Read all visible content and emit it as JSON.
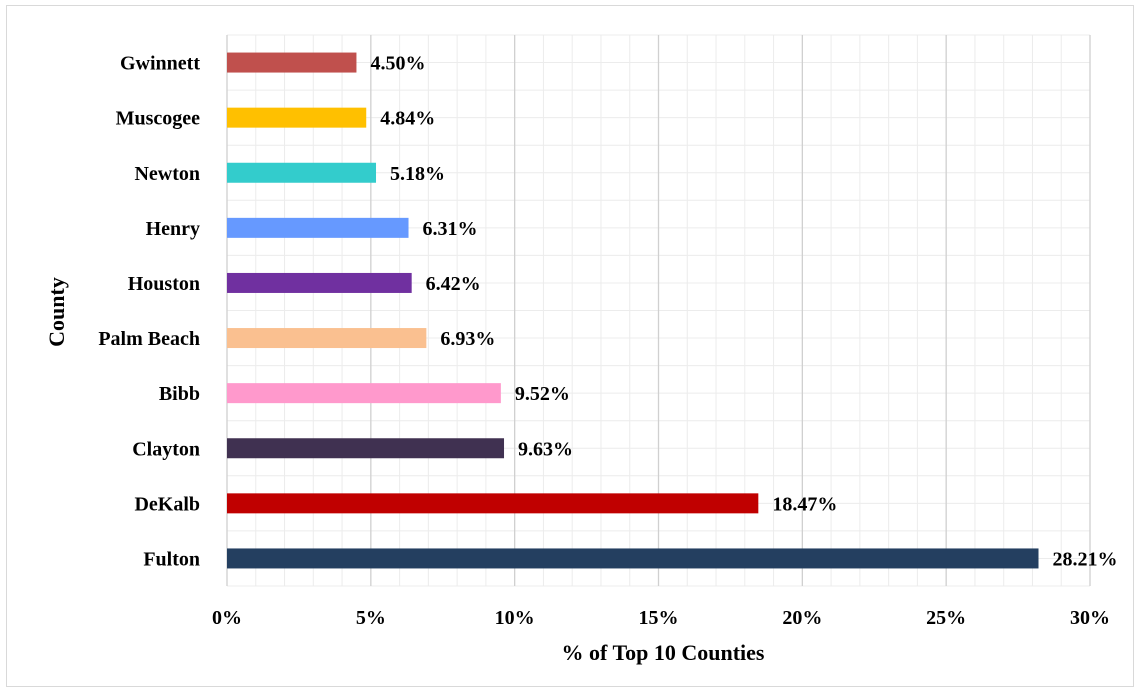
{
  "chart_data": {
    "type": "bar",
    "orientation": "horizontal",
    "title": "",
    "xlabel": "% of Top 10  Counties",
    "ylabel": "County",
    "xlim": [
      0,
      30
    ],
    "x_ticks": [
      0,
      5,
      10,
      15,
      20,
      25,
      30
    ],
    "x_tick_labels": [
      "0%",
      "5%",
      "10%",
      "15%",
      "20%",
      "25%",
      "30%"
    ],
    "minor_grid_step": 1,
    "grid": true,
    "legend": "none",
    "categories": [
      "Fulton",
      "DeKalb",
      "Clayton",
      "Bibb",
      "Palm Beach",
      "Houston",
      "Henry",
      "Newton",
      "Muscogee",
      "Gwinnett"
    ],
    "values": [
      28.21,
      18.47,
      9.63,
      9.52,
      6.93,
      6.42,
      6.31,
      5.18,
      4.84,
      4.5
    ],
    "data_labels": [
      "28.21%",
      "18.47%",
      "9.63%",
      "9.52%",
      "6.93%",
      "6.42%",
      "6.31%",
      "5.18%",
      "4.84%",
      "4.50%"
    ],
    "colors": [
      "#243f60",
      "#c00000",
      "#403151",
      "#ff99cc",
      "#fac090",
      "#7030a0",
      "#6699ff",
      "#33cccc",
      "#ffc000",
      "#c0504d"
    ]
  }
}
